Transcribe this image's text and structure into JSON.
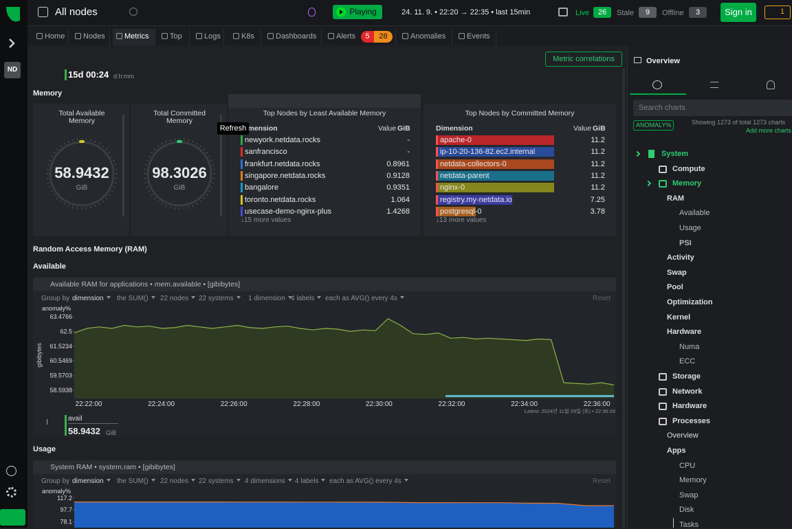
{
  "sidebar": {
    "badge": "ND"
  },
  "topbar": {
    "scope": "All nodes",
    "play": "Playing",
    "time_range": "24. 11. 9. • 22:20 → 22:35 • last 15min",
    "live_label": "Live",
    "live_count": 26,
    "stale_label": "Stale",
    "stale_count": 9,
    "offline_label": "Offline",
    "offline_count": 3,
    "sign_in": "Sign in",
    "alert_count": 1
  },
  "tabs": {
    "items": [
      "Home",
      "Nodes",
      "Metrics",
      "Top",
      "Logs",
      "K8s",
      "Dashboards",
      "Alerts",
      "Anomalies",
      "Events"
    ],
    "alerts_critical": 5,
    "alerts_warning": 28
  },
  "header": {
    "metric_correlations": "Metric correlations",
    "uptime": "15d 00:24",
    "uptime_unit": "d:h:mm",
    "section": "Memory",
    "tooltip": "Refresh"
  },
  "gauges": [
    {
      "title": "Total Available Memory",
      "value": 58.9432,
      "unit": "GiB"
    },
    {
      "title": "Total Committed Memory",
      "value": 98.3026,
      "unit": "GiB"
    }
  ],
  "tables": [
    {
      "title": "Top Nodes by Least Available Memory",
      "dimension": "Dimension",
      "value": "Value",
      "unit": "GiB",
      "more": "↓15 more values",
      "rows": [
        {
          "name": "newyork.netdata.rocks",
          "value": "-",
          "color": "#2fa84f"
        },
        {
          "name": "sanfrancisco",
          "value": "-",
          "color": "#d9302c"
        },
        {
          "name": "frankfurt.netdata.rocks",
          "value": 0.8961,
          "color": "#2f6fd0"
        },
        {
          "name": "singapore.netdata.rocks",
          "value": 0.9128,
          "color": "#e07b2c"
        },
        {
          "name": "bangalore",
          "value": 0.9351,
          "color": "#1a9cc9"
        },
        {
          "name": "toronto.netdata.rocks",
          "value": 1.064,
          "color": "#d6c52a"
        },
        {
          "name": "usecase-demo-nginx-plus",
          "value": 1.4268,
          "color": "#4a4ad0"
        }
      ]
    },
    {
      "title": "Top Nodes by Committed Memory",
      "dimension": "Dimension",
      "value": "Value",
      "unit": "GiB",
      "more": "↓13 more values",
      "rows": [
        {
          "name": "apache-0",
          "value": 11.2,
          "color": "#b8262c"
        },
        {
          "name": "ip-10-20-136-82.ec2.internal",
          "value": 11.2,
          "color": "#2a4a9a"
        },
        {
          "name": "netdata-collectors-0",
          "value": 11.2,
          "color": "#a8481e"
        },
        {
          "name": "netdata-parent",
          "value": 11.2,
          "color": "#1a6f8a"
        },
        {
          "name": "nginx-0",
          "value": 11.2,
          "color": "#86861e"
        },
        {
          "name": "registry.my-netdata.io",
          "value": 7.25,
          "color": "#3b3ba0"
        },
        {
          "name": "postgresql-0",
          "value": 3.78,
          "color": "#a8601f"
        }
      ]
    }
  ],
  "headings": {
    "ram": "Random Access Memory (RAM)",
    "available": "Available",
    "usage": "Usage"
  },
  "charts": [
    {
      "type": "area",
      "title": "Available RAM for applications • mem.available • [gibibytes]",
      "color": "#8fb34a",
      "controls": [
        "Group by",
        "dimension",
        "the SUM()",
        "22 nodes",
        "22 systems",
        "1 dimension",
        "4 labels",
        "each as AVG() every 4s"
      ],
      "reset": "Reset",
      "anomaly": "anomaly%",
      "ylabel": "gibibytes",
      "ylim": [
        58.05,
        63.75
      ],
      "yticks": [
        63.4766,
        62.5,
        61.5234,
        60.5469,
        59.5703,
        58.5938
      ],
      "xticks": [
        "22:22:00",
        "22:24:00",
        "22:26:00",
        "22:28:00",
        "22:30:00",
        "22:32:00",
        "22:34:00",
        "22:36:00"
      ],
      "values": [
        62.4,
        62.7,
        62.8,
        62.7,
        62.9,
        62.8,
        62.85,
        62.7,
        62.75,
        62.9,
        62.8,
        62.7,
        62.8,
        62.9,
        62.75,
        62.7,
        62.8,
        62.85,
        62.7,
        62.6,
        62.7,
        62.65,
        62.5,
        62.6,
        62.55,
        63.35,
        62.9,
        62.35,
        62.3,
        62.4,
        62.05,
        62.1,
        62.0,
        62.05,
        62.0,
        61.95,
        61.9,
        62.0,
        61.95,
        59.1,
        59.05,
        59.0,
        59.1,
        58.95
      ],
      "latest": "Latest: 2024년 11월 09일 (토) • 22:36:28",
      "legend": {
        "name": "avail",
        "value": 58.9432,
        "unit": "GiB"
      }
    },
    {
      "type": "area",
      "title": "System RAM • system.ram • [gibibytes]",
      "color": "#1f5fc0",
      "controls": [
        "Group by",
        "dimension",
        "the SUM()",
        "22 nodes",
        "22 systems",
        "4 dimensions",
        "4 labels",
        "each as AVG() every 4s"
      ],
      "reset": "Reset",
      "anomaly": "anomaly%",
      "ylim": [
        68.4,
        121.5
      ],
      "yticks": [
        117.2,
        97.7,
        78.1
      ],
      "values": [
        110.7,
        110.7,
        110.6,
        110.7,
        110.6,
        110.6,
        110.5,
        110.5,
        110.4,
        110.4,
        110.3,
        110.2,
        109.5,
        109.5,
        109.4,
        109.4,
        108.6,
        108.5,
        104.5,
        104.5
      ]
    }
  ],
  "panel": {
    "title": "Overview",
    "search": "Search charts",
    "anomaly": "ANOMALY%",
    "showing": "Showing 1273 of total 1273 charts",
    "add_more": "Add more charts",
    "tree": [
      "System",
      "Compute",
      "Memory",
      "RAM",
      "Available",
      "Usage",
      "PSI",
      "Activity",
      "Swap",
      "Pool",
      "Optimization",
      "Kernel",
      "Hardware",
      "Numa",
      "ECC",
      "Storage",
      "Network",
      "Hardware",
      "Processes",
      "Overview",
      "Apps",
      "CPU",
      "Memory",
      "Swap",
      "Disk",
      "Tasks"
    ]
  }
}
